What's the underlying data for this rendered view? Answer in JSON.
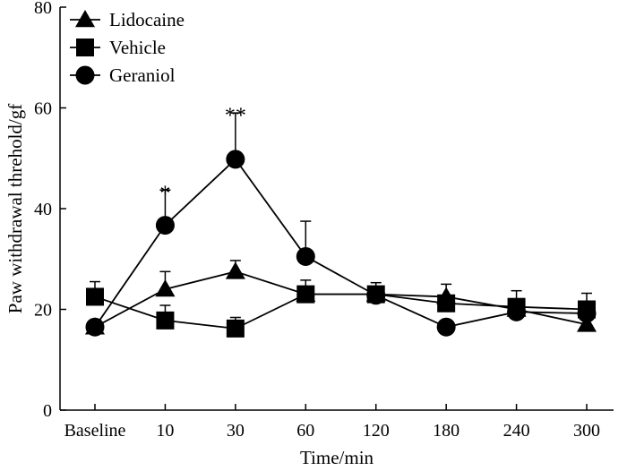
{
  "chart_data": {
    "type": "line",
    "title": "",
    "xlabel": "Time/min",
    "ylabel": "Paw withdrawal threhold/gf",
    "categories": [
      "Baseline",
      "10",
      "30",
      "60",
      "120",
      "180",
      "240",
      "300"
    ],
    "ylim": [
      0,
      80
    ],
    "yticks": [
      0,
      20,
      40,
      60,
      80
    ],
    "grid": false,
    "legend_position": "top-left",
    "series": [
      {
        "name": "Lidocaine",
        "marker": "triangle",
        "values": [
          16.5,
          24,
          27.5,
          23,
          23,
          22.5,
          20,
          17
        ],
        "errors": [
          0,
          3.5,
          2.2,
          0,
          0,
          0,
          0,
          0
        ]
      },
      {
        "name": "Vehicle",
        "marker": "square",
        "values": [
          22.5,
          17.8,
          16.2,
          23,
          23,
          21.2,
          20.5,
          20
        ],
        "errors": [
          3,
          3,
          2.2,
          2.8,
          2.3,
          3.8,
          3.2,
          3.2
        ]
      },
      {
        "name": "Geraniol",
        "marker": "circle",
        "values": [
          16.5,
          36.7,
          49.8,
          30.5,
          22.8,
          16.5,
          19.5,
          19.2
        ],
        "errors": [
          0,
          7,
          9.2,
          7,
          0,
          0,
          0,
          0
        ]
      }
    ],
    "annotations": [
      {
        "category": "10",
        "text": "*",
        "value": 44.5
      },
      {
        "category": "30",
        "text": "**",
        "value": 60
      }
    ]
  }
}
